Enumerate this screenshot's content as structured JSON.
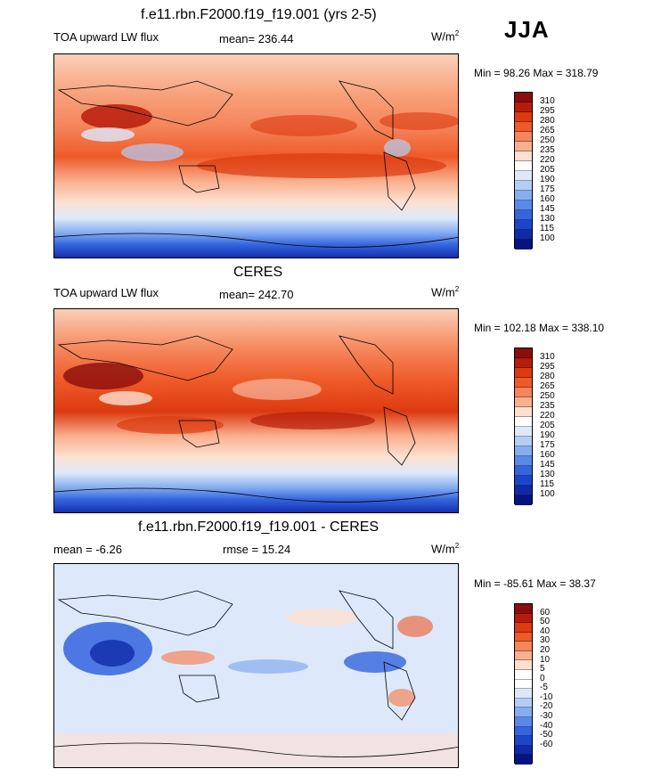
{
  "season": "JJA",
  "panels": [
    {
      "title": "f.e11.rbn.F2000.f19_f19.001 (yrs 2-5)",
      "left_label": "TOA upward LW flux",
      "center_label": "mean= 236.44",
      "units_base": "W/m",
      "units_exp": "2",
      "minmax": "Min =  98.26 Max = 318.79",
      "colorbar": {
        "colors": [
          "#8b0d0d",
          "#b71c0c",
          "#dc3a10",
          "#ee5a28",
          "#f5855b",
          "#f9b08f",
          "#fde0d0",
          "#ffffff",
          "#dde9fb",
          "#b3cdf7",
          "#85adf0",
          "#5a88e8",
          "#3464de",
          "#1c45c9",
          "#0f2aa8",
          "#08147e"
        ],
        "labels": [
          "310",
          "295",
          "280",
          "265",
          "250",
          "235",
          "220",
          "205",
          "190",
          "175",
          "160",
          "145",
          "130",
          "115",
          "100"
        ]
      }
    },
    {
      "title": "CERES",
      "left_label": "TOA upward LW flux",
      "center_label": "mean= 242.70",
      "units_base": "W/m",
      "units_exp": "2",
      "minmax": "Min = 102.18 Max = 338.10",
      "colorbar": {
        "colors": [
          "#8b0d0d",
          "#b71c0c",
          "#dc3a10",
          "#ee5a28",
          "#f5855b",
          "#f9b08f",
          "#fde0d0",
          "#ffffff",
          "#dde9fb",
          "#b3cdf7",
          "#85adf0",
          "#5a88e8",
          "#3464de",
          "#1c45c9",
          "#0f2aa8",
          "#08147e"
        ],
        "labels": [
          "310",
          "295",
          "280",
          "265",
          "250",
          "235",
          "220",
          "205",
          "190",
          "175",
          "160",
          "145",
          "130",
          "115",
          "100"
        ]
      }
    },
    {
      "title": "f.e11.rbn.F2000.f19_f19.001 - CERES",
      "left_label": "mean =  -6.26",
      "center_label": "rmse =  15.24",
      "units_base": "W/m",
      "units_exp": "2",
      "minmax": "Min = -85.61 Max =  38.37",
      "colorbar": {
        "colors": [
          "#8b0d0d",
          "#b71c0c",
          "#dc3a10",
          "#ee5a28",
          "#f5855b",
          "#f9b08f",
          "#fde0d0",
          "#ffffff",
          "#ffffff",
          "#dde9fb",
          "#b3cdf7",
          "#85adf0",
          "#5a88e8",
          "#3464de",
          "#1c45c9",
          "#0f2aa8",
          "#08147e"
        ],
        "labels": [
          "60",
          "50",
          "40",
          "30",
          "20",
          "10",
          "5",
          "0",
          "-5",
          "-10",
          "-20",
          "-30",
          "-40",
          "-50",
          "-60"
        ]
      }
    }
  ]
}
